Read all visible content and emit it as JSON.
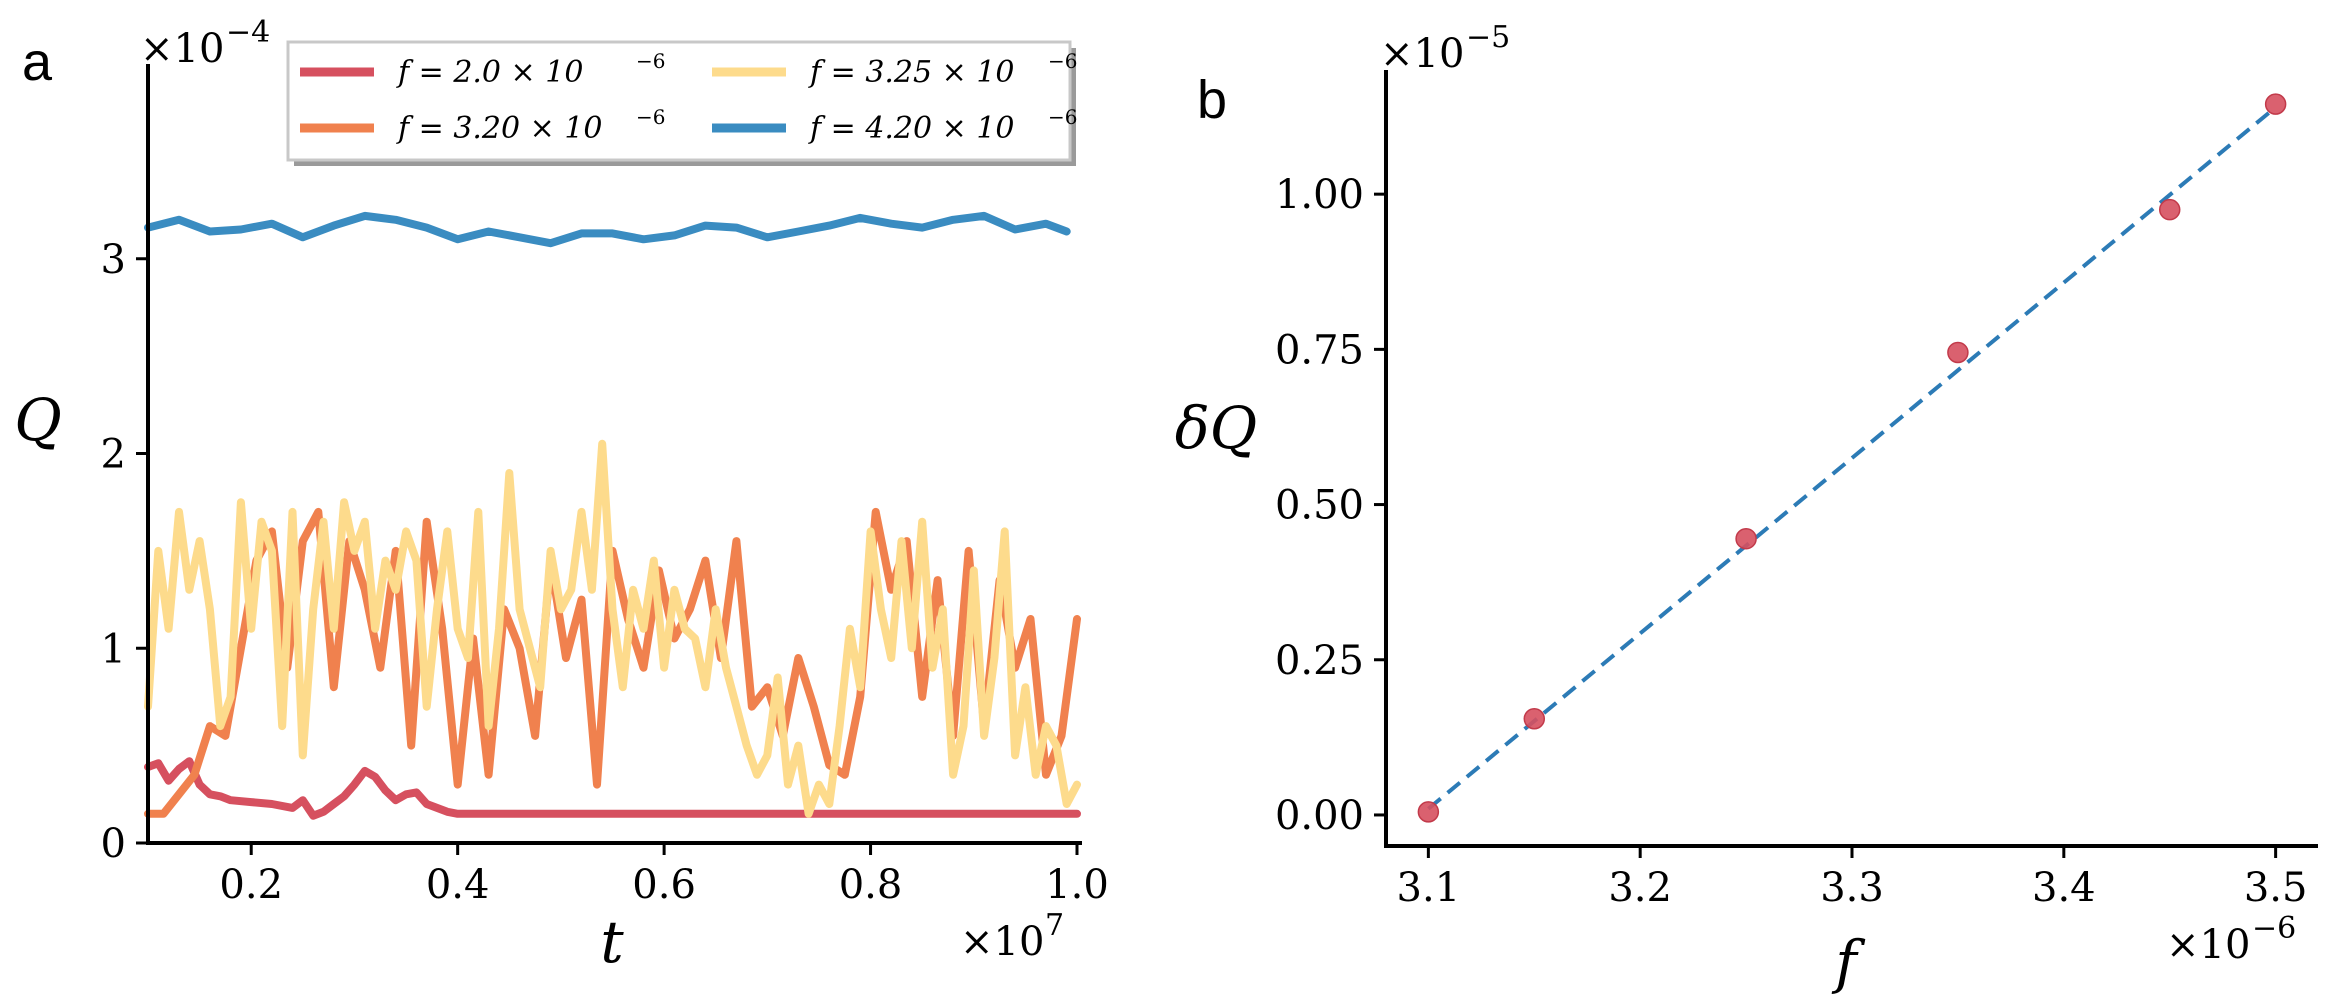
{
  "chart_data": [
    {
      "type": "line",
      "panel_label": "a",
      "xlabel": "t",
      "ylabel": "Q",
      "x_multiplier": "×10",
      "x_multiplier_exp": "7",
      "y_multiplier": "×10",
      "y_multiplier_exp": "−4",
      "xlim": [
        0.1,
        1.0
      ],
      "ylim": [
        0,
        4.0
      ],
      "xticks": [
        0.2,
        0.4,
        0.6,
        0.8,
        1.0
      ],
      "xtick_labels": [
        "0.2",
        "0.4",
        "0.6",
        "0.8",
        "1.0"
      ],
      "yticks": [
        0,
        1,
        2,
        3
      ],
      "ytick_labels": [
        "0",
        "1",
        "2",
        "3"
      ],
      "legend_position": "top-center",
      "series": [
        {
          "name": "f = 2.0 × 10",
          "name_exp": "−6",
          "color": "#d6505f",
          "x": [
            0.1,
            0.11,
            0.12,
            0.13,
            0.14,
            0.15,
            0.16,
            0.17,
            0.18,
            0.2,
            0.22,
            0.24,
            0.25,
            0.26,
            0.27,
            0.28,
            0.29,
            0.3,
            0.31,
            0.32,
            0.33,
            0.34,
            0.35,
            0.36,
            0.37,
            0.38,
            0.39,
            0.4,
            0.45,
            0.5,
            0.6,
            0.7,
            0.8,
            0.9,
            1.0
          ],
          "values": [
            0.39,
            0.41,
            0.32,
            0.38,
            0.42,
            0.3,
            0.25,
            0.24,
            0.22,
            0.21,
            0.2,
            0.18,
            0.22,
            0.14,
            0.16,
            0.2,
            0.24,
            0.3,
            0.37,
            0.34,
            0.27,
            0.22,
            0.25,
            0.26,
            0.2,
            0.18,
            0.16,
            0.15,
            0.15,
            0.15,
            0.15,
            0.15,
            0.15,
            0.15,
            0.15
          ]
        },
        {
          "name": "f = 3.20 × 10",
          "name_exp": "−6",
          "color": "#f0814e",
          "x": [
            0.1,
            0.115,
            0.13,
            0.145,
            0.16,
            0.175,
            0.19,
            0.205,
            0.22,
            0.235,
            0.25,
            0.265,
            0.28,
            0.295,
            0.31,
            0.325,
            0.34,
            0.355,
            0.37,
            0.385,
            0.4,
            0.415,
            0.43,
            0.445,
            0.46,
            0.475,
            0.49,
            0.505,
            0.52,
            0.535,
            0.55,
            0.565,
            0.58,
            0.595,
            0.61,
            0.625,
            0.64,
            0.655,
            0.67,
            0.685,
            0.7,
            0.715,
            0.73,
            0.745,
            0.76,
            0.775,
            0.79,
            0.805,
            0.82,
            0.835,
            0.85,
            0.865,
            0.88,
            0.895,
            0.91,
            0.925,
            0.94,
            0.955,
            0.97,
            0.985,
            1.0
          ],
          "values": [
            0.15,
            0.15,
            0.25,
            0.35,
            0.6,
            0.55,
            1.0,
            1.45,
            1.6,
            0.9,
            1.55,
            1.7,
            0.8,
            1.55,
            1.3,
            0.9,
            1.5,
            0.5,
            1.65,
            1.1,
            0.3,
            1.05,
            0.35,
            1.2,
            1.0,
            0.55,
            1.45,
            0.95,
            1.25,
            0.3,
            1.5,
            1.15,
            0.9,
            1.4,
            1.05,
            1.2,
            1.45,
            0.95,
            1.55,
            0.7,
            0.8,
            0.55,
            0.95,
            0.7,
            0.4,
            0.35,
            0.75,
            1.7,
            1.3,
            1.55,
            0.75,
            1.35,
            0.55,
            1.5,
            0.6,
            1.35,
            0.9,
            1.15,
            0.35,
            0.55,
            1.15
          ]
        },
        {
          "name": "f = 3.25 × 10",
          "name_exp": "−6",
          "color": "#fddb8c",
          "x": [
            0.1,
            0.11,
            0.12,
            0.13,
            0.14,
            0.15,
            0.16,
            0.17,
            0.18,
            0.19,
            0.2,
            0.21,
            0.22,
            0.23,
            0.24,
            0.25,
            0.26,
            0.27,
            0.28,
            0.29,
            0.3,
            0.31,
            0.32,
            0.33,
            0.34,
            0.35,
            0.36,
            0.37,
            0.38,
            0.39,
            0.4,
            0.41,
            0.42,
            0.43,
            0.44,
            0.45,
            0.46,
            0.47,
            0.48,
            0.49,
            0.5,
            0.51,
            0.52,
            0.53,
            0.54,
            0.55,
            0.56,
            0.57,
            0.58,
            0.59,
            0.6,
            0.61,
            0.62,
            0.63,
            0.64,
            0.65,
            0.66,
            0.67,
            0.68,
            0.69,
            0.7,
            0.71,
            0.72,
            0.73,
            0.74,
            0.75,
            0.76,
            0.77,
            0.78,
            0.79,
            0.8,
            0.81,
            0.82,
            0.83,
            0.84,
            0.85,
            0.86,
            0.87,
            0.88,
            0.89,
            0.9,
            0.91,
            0.92,
            0.93,
            0.94,
            0.95,
            0.96,
            0.97,
            0.98,
            0.99,
            1.0
          ],
          "values": [
            0.7,
            1.5,
            1.1,
            1.7,
            1.3,
            1.55,
            1.2,
            0.6,
            0.75,
            1.75,
            1.1,
            1.65,
            1.5,
            0.6,
            1.7,
            0.45,
            1.2,
            1.65,
            1.1,
            1.75,
            1.5,
            1.65,
            1.1,
            1.45,
            1.3,
            1.6,
            1.45,
            0.7,
            1.2,
            1.6,
            1.1,
            0.95,
            1.7,
            0.6,
            1.1,
            1.9,
            1.2,
            1.0,
            0.8,
            1.5,
            1.2,
            1.3,
            1.7,
            1.3,
            2.05,
            1.2,
            0.8,
            1.3,
            1.1,
            1.45,
            0.9,
            1.3,
            1.1,
            1.05,
            0.8,
            1.2,
            0.9,
            0.7,
            0.5,
            0.35,
            0.45,
            0.85,
            0.3,
            0.5,
            0.15,
            0.3,
            0.2,
            0.6,
            1.1,
            0.8,
            1.6,
            1.2,
            0.95,
            1.55,
            1.0,
            1.65,
            0.9,
            1.2,
            0.35,
            0.6,
            1.4,
            0.55,
            0.95,
            1.6,
            0.45,
            0.8,
            0.35,
            0.6,
            0.5,
            0.2,
            0.3
          ]
        },
        {
          "name": "f = 4.20 × 10",
          "name_exp": "−6",
          "color": "#3a8cc1",
          "x": [
            0.1,
            0.13,
            0.16,
            0.19,
            0.22,
            0.25,
            0.28,
            0.31,
            0.34,
            0.37,
            0.4,
            0.43,
            0.46,
            0.49,
            0.52,
            0.55,
            0.58,
            0.61,
            0.64,
            0.67,
            0.7,
            0.73,
            0.76,
            0.79,
            0.82,
            0.85,
            0.88,
            0.91,
            0.94,
            0.97,
            0.99
          ],
          "values": [
            3.16,
            3.2,
            3.14,
            3.15,
            3.18,
            3.11,
            3.17,
            3.22,
            3.2,
            3.16,
            3.1,
            3.14,
            3.11,
            3.08,
            3.13,
            3.13,
            3.1,
            3.12,
            3.17,
            3.16,
            3.11,
            3.14,
            3.17,
            3.21,
            3.18,
            3.16,
            3.2,
            3.22,
            3.15,
            3.18,
            3.14
          ]
        }
      ]
    },
    {
      "type": "scatter",
      "panel_label": "b",
      "xlabel": "f",
      "ylabel": "δQ",
      "x_multiplier": "×10",
      "x_multiplier_exp": "−6",
      "y_multiplier": "×10",
      "y_multiplier_exp": "−5",
      "xlim": [
        3.08,
        3.52
      ],
      "ylim": [
        -0.05,
        1.2
      ],
      "xticks": [
        3.1,
        3.2,
        3.3,
        3.4,
        3.5
      ],
      "xtick_labels": [
        "3.1",
        "3.2",
        "3.3",
        "3.4",
        "3.5"
      ],
      "yticks": [
        0.0,
        0.25,
        0.5,
        0.75,
        1.0
      ],
      "ytick_labels": [
        "0.00",
        "0.25",
        "0.50",
        "0.75",
        "1.00"
      ],
      "points": {
        "color": "#d6505f",
        "x": [
          3.1,
          3.15,
          3.25,
          3.35,
          3.45,
          3.5
        ],
        "y": [
          0.005,
          0.155,
          0.445,
          0.745,
          0.975,
          1.145
        ]
      },
      "fit_line": {
        "style": "dashed",
        "color": "#2c7bb6",
        "x": [
          3.1,
          3.5
        ],
        "y": [
          0.01,
          1.14
        ]
      }
    }
  ]
}
